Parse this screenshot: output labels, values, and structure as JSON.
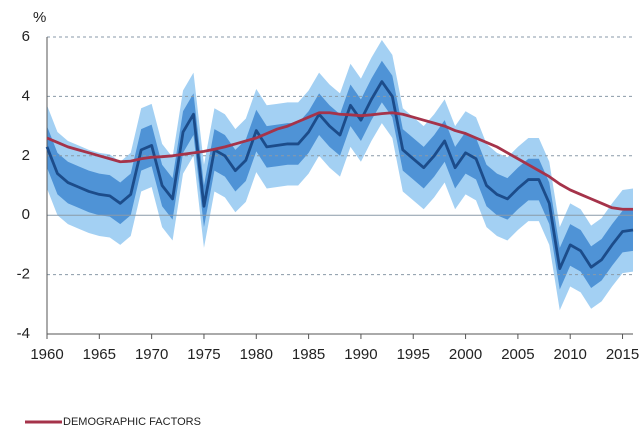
{
  "chart_data": {
    "type": "line",
    "y_unit": "%",
    "x": [
      1960,
      1961,
      1962,
      1963,
      1964,
      1965,
      1966,
      1967,
      1968,
      1969,
      1970,
      1971,
      1972,
      1973,
      1974,
      1975,
      1976,
      1977,
      1978,
      1979,
      1980,
      1981,
      1982,
      1983,
      1984,
      1985,
      1986,
      1987,
      1988,
      1989,
      1990,
      1991,
      1992,
      1993,
      1994,
      1995,
      1996,
      1997,
      1998,
      1999,
      2000,
      2001,
      2002,
      2003,
      2004,
      2005,
      2006,
      2007,
      2008,
      2009,
      2010,
      2011,
      2012,
      2013,
      2014,
      2015,
      2016
    ],
    "xlim": [
      1960,
      2016
    ],
    "xticks": [
      1960,
      1965,
      1970,
      1975,
      1980,
      1985,
      1990,
      1995,
      2000,
      2005,
      2010,
      2015
    ],
    "ylim": [
      -4,
      6
    ],
    "yticks": [
      -4,
      -2,
      0,
      2,
      4,
      6
    ],
    "grid": true,
    "bands": [
      {
        "color": "#a3d0f3",
        "upper": [
          3.7,
          2.8,
          2.5,
          2.35,
          2.2,
          2.1,
          2.05,
          1.8,
          2.1,
          3.6,
          3.75,
          2.4,
          1.95,
          4.2,
          4.8,
          1.7,
          3.6,
          3.4,
          2.9,
          3.25,
          4.25,
          3.7,
          3.75,
          3.8,
          3.8,
          4.2,
          4.8,
          4.4,
          4.1,
          5.1,
          4.6,
          5.3,
          5.9,
          5.4,
          3.6,
          3.3,
          3.0,
          3.4,
          3.9,
          3.0,
          3.5,
          3.3,
          2.4,
          2.1,
          1.95,
          2.3,
          2.6,
          2.6,
          1.8,
          -0.4,
          0.4,
          0.2,
          -0.35,
          -0.1,
          0.4,
          0.85,
          0.9
        ],
        "lower": [
          0.9,
          0.0,
          -0.3,
          -0.45,
          -0.6,
          -0.7,
          -0.75,
          -1.0,
          -0.7,
          0.8,
          0.95,
          -0.4,
          -0.85,
          1.4,
          2.0,
          -1.1,
          0.8,
          0.6,
          0.1,
          0.45,
          1.45,
          0.9,
          0.95,
          1.0,
          1.0,
          1.4,
          2.0,
          1.6,
          1.3,
          2.3,
          1.8,
          2.5,
          3.1,
          2.6,
          0.8,
          0.5,
          0.2,
          0.6,
          1.1,
          0.2,
          0.7,
          0.5,
          -0.4,
          -0.7,
          -0.85,
          -0.5,
          -0.2,
          -0.2,
          -1.0,
          -3.2,
          -2.4,
          -2.6,
          -3.15,
          -2.9,
          -2.4,
          -1.95,
          -1.9
        ]
      },
      {
        "color": "#4f93d6",
        "upper": [
          3.0,
          2.1,
          1.8,
          1.65,
          1.5,
          1.4,
          1.35,
          1.1,
          1.4,
          2.9,
          3.05,
          1.7,
          1.25,
          3.5,
          4.1,
          1.0,
          2.9,
          2.7,
          2.2,
          2.55,
          3.55,
          3.0,
          3.05,
          3.1,
          3.1,
          3.5,
          4.1,
          3.7,
          3.4,
          4.4,
          3.9,
          4.6,
          5.2,
          4.7,
          2.9,
          2.6,
          2.3,
          2.7,
          3.2,
          2.3,
          2.8,
          2.6,
          1.7,
          1.4,
          1.25,
          1.6,
          1.9,
          1.9,
          1.1,
          -1.1,
          -0.3,
          -0.5,
          -1.05,
          -0.8,
          -0.3,
          0.15,
          0.2
        ],
        "lower": [
          1.6,
          0.7,
          0.4,
          0.25,
          0.1,
          0.0,
          -0.05,
          -0.3,
          0.0,
          1.5,
          1.65,
          0.3,
          -0.15,
          2.1,
          2.7,
          -0.4,
          1.5,
          1.3,
          0.8,
          1.15,
          2.15,
          1.6,
          1.65,
          1.7,
          1.7,
          2.1,
          2.7,
          2.3,
          2.0,
          3.0,
          2.5,
          3.2,
          3.8,
          3.3,
          1.5,
          1.2,
          0.9,
          1.3,
          1.8,
          0.9,
          1.4,
          1.2,
          0.3,
          0.0,
          -0.15,
          0.2,
          0.5,
          0.5,
          -0.3,
          -2.5,
          -1.7,
          -1.9,
          -2.45,
          -2.2,
          -1.7,
          -1.25,
          -1.2
        ]
      }
    ],
    "series": [
      {
        "color": "#1c4c8a",
        "values": [
          2.3,
          1.4,
          1.1,
          0.95,
          0.8,
          0.7,
          0.65,
          0.4,
          0.7,
          2.2,
          2.35,
          1.0,
          0.55,
          2.8,
          3.4,
          0.3,
          2.2,
          2.0,
          1.5,
          1.85,
          2.85,
          2.3,
          2.35,
          2.4,
          2.4,
          2.8,
          3.4,
          3.0,
          2.7,
          3.7,
          3.2,
          3.9,
          4.5,
          4.0,
          2.2,
          1.9,
          1.6,
          2.0,
          2.5,
          1.6,
          2.1,
          1.9,
          1.0,
          0.7,
          0.55,
          0.9,
          1.2,
          1.2,
          0.4,
          -1.8,
          -1.0,
          -1.2,
          -1.75,
          -1.5,
          -1.0,
          -0.55,
          -0.5
        ]
      },
      {
        "name": "DEMOGRAPHIC FACTORS",
        "color": "#a5334a",
        "values": [
          2.6,
          2.45,
          2.3,
          2.2,
          2.1,
          2.0,
          1.9,
          1.8,
          1.82,
          1.9,
          1.95,
          1.97,
          2.0,
          2.05,
          2.1,
          2.15,
          2.22,
          2.3,
          2.4,
          2.5,
          2.6,
          2.75,
          2.9,
          3.0,
          3.15,
          3.3,
          3.45,
          3.45,
          3.4,
          3.38,
          3.35,
          3.38,
          3.42,
          3.45,
          3.4,
          3.3,
          3.2,
          3.1,
          3.0,
          2.85,
          2.75,
          2.6,
          2.45,
          2.3,
          2.1,
          1.9,
          1.7,
          1.5,
          1.3,
          1.05,
          0.85,
          0.7,
          0.55,
          0.4,
          0.25,
          0.2,
          0.2
        ]
      }
    ]
  }
}
